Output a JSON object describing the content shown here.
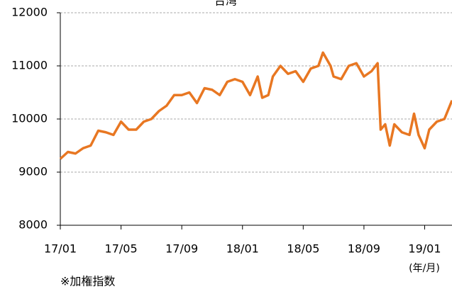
{
  "chart_data": {
    "type": "line",
    "title": "台湾",
    "x": [
      0,
      0.5,
      1,
      1.5,
      2,
      2.5,
      3,
      3.5,
      4,
      4.5,
      5,
      5.5,
      6,
      6.5,
      7,
      7.5,
      8,
      8.5,
      9,
      9.5,
      10,
      10.5,
      11,
      11.5,
      12,
      12.5,
      13,
      13.3,
      13.7,
      14,
      14.5,
      15,
      15.5,
      16,
      16.5,
      17,
      17.3,
      17.8,
      18,
      18.5,
      19,
      19.5,
      20,
      20.5,
      20.9,
      21.1,
      21.4,
      21.7,
      22,
      22.5,
      23,
      23.3,
      23.6,
      24,
      24.3,
      24.8,
      25.3,
      25.8
    ],
    "series": [
      {
        "name": "加権指数",
        "color": "#e87722",
        "values": [
          9250,
          9380,
          9350,
          9450,
          9500,
          9780,
          9750,
          9700,
          9950,
          9800,
          9800,
          9950,
          10000,
          10150,
          10250,
          10450,
          10450,
          10500,
          10300,
          10580,
          10550,
          10450,
          10700,
          10750,
          10700,
          10450,
          10800,
          10400,
          10450,
          10800,
          11000,
          10850,
          10900,
          10700,
          10950,
          11000,
          11250,
          11000,
          10800,
          10750,
          11000,
          11050,
          10800,
          10900,
          11050,
          9800,
          9900,
          9500,
          9900,
          9750,
          9700,
          10100,
          9700,
          9450,
          9800,
          9950,
          10000,
          10350
        ]
      }
    ],
    "xlim": [
      0,
      25.8
    ],
    "xticks": [
      {
        "value": 0,
        "label": "17/01"
      },
      {
        "value": 4,
        "label": "17/05"
      },
      {
        "value": 8,
        "label": "17/09"
      },
      {
        "value": 12,
        "label": "18/01"
      },
      {
        "value": 16,
        "label": "18/05"
      },
      {
        "value": 20,
        "label": "18/09"
      },
      {
        "value": 24,
        "label": "19/01"
      }
    ],
    "ylim": [
      8000,
      12000
    ],
    "yticks": [
      8000,
      9000,
      10000,
      11000,
      12000
    ],
    "grid": true,
    "x_unit": "(年/月)",
    "note": "※加権指数"
  }
}
